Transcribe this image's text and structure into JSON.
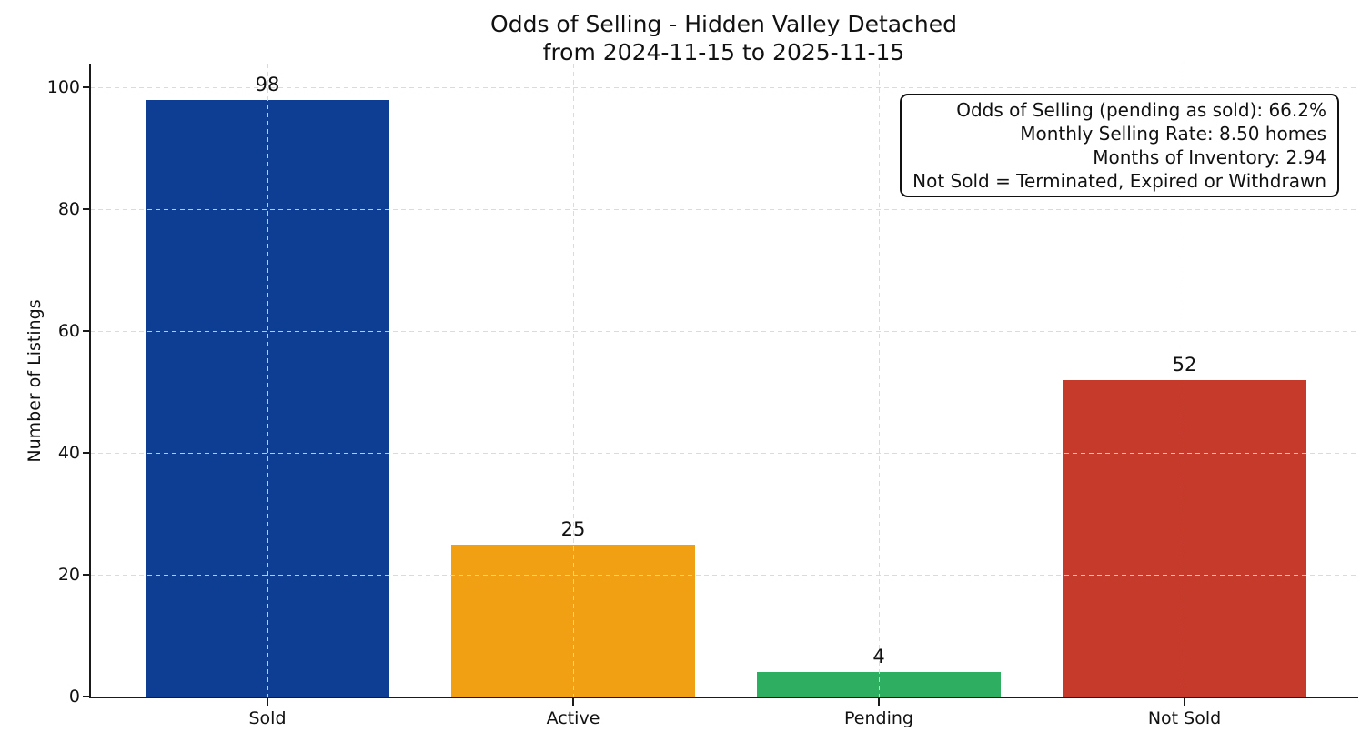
{
  "title": {
    "line1": "Odds of Selling - Hidden Valley Detached",
    "line2": "from 2024-11-15 to 2025-11-15"
  },
  "chart_data": {
    "type": "bar",
    "title": "Odds of Selling - Hidden Valley Detached\nfrom 2024-11-15 to 2025-11-15",
    "categories": [
      "Sold",
      "Active",
      "Pending",
      "Not Sold"
    ],
    "values": [
      98,
      25,
      4,
      52
    ],
    "bar_colors": [
      "#0e3e94",
      "#f2a013",
      "#2dae61",
      "#c63a2c"
    ],
    "value_labels": [
      "98",
      "25",
      "4",
      "52"
    ],
    "xlabel": "",
    "ylabel": "Number of Listings",
    "ylim": [
      0,
      103.9
    ],
    "yticks": [
      0,
      20,
      40,
      60,
      80,
      100
    ],
    "grid": "dashed light-gray, horizontal at yticks and vertical at bar centers",
    "legend": "none",
    "spines": "left and bottom only"
  },
  "annotation": {
    "lines": [
      "Odds of Selling (pending as sold): 66.2%",
      "Monthly Selling Rate: 8.50 homes",
      "Months of Inventory: 2.94",
      "Not Sold = Terminated, Expired or Withdrawn"
    ]
  },
  "colors": {
    "background": "#ffffff",
    "axis": "#1a1a1a",
    "grid": "#d7d7d7",
    "text": "#111111",
    "sold": "#0e3e94",
    "active": "#f2a013",
    "pending": "#2dae61",
    "not_sold": "#c63a2c"
  }
}
